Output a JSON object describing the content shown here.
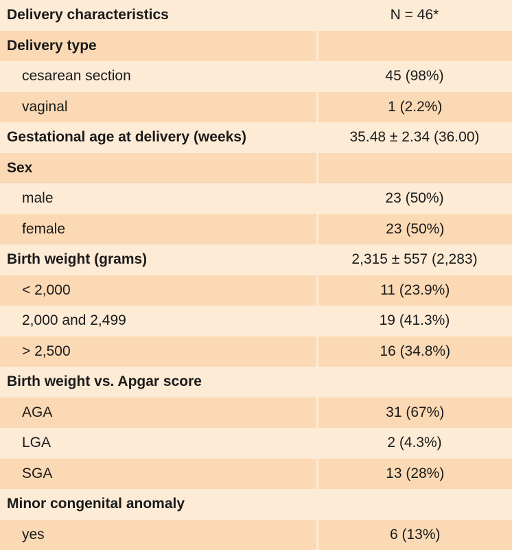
{
  "table": {
    "header": {
      "label": "Delivery characteristics",
      "value": "N = 46*"
    },
    "rows": [
      {
        "label": "Delivery type",
        "value": "",
        "kind": "head"
      },
      {
        "label": "cesarean section",
        "value": "45 (98%)",
        "kind": "sub"
      },
      {
        "label": "vaginal",
        "value": "1 (2.2%)",
        "kind": "sub"
      },
      {
        "label": "Gestational age at delivery (weeks)",
        "value": "35.48 ± 2.34 (36.00)",
        "kind": "head"
      },
      {
        "label": "Sex",
        "value": "",
        "kind": "head"
      },
      {
        "label": "male",
        "value": "23 (50%)",
        "kind": "sub"
      },
      {
        "label": "female",
        "value": "23 (50%)",
        "kind": "sub"
      },
      {
        "label": "Birth weight (grams)",
        "value": "2,315 ± 557 (2,283)",
        "kind": "head"
      },
      {
        "label": "< 2,000",
        "value": "11 (23.9%)",
        "kind": "sub"
      },
      {
        "label": "2,000 and 2,499",
        "value": "19 (41.3%)",
        "kind": "sub"
      },
      {
        "label": "> 2,500",
        "value": "16 (34.8%)",
        "kind": "sub"
      },
      {
        "label": "Birth weight vs. Apgar score",
        "value": "",
        "kind": "head"
      },
      {
        "label": "AGA",
        "value": "31 (67%)",
        "kind": "sub"
      },
      {
        "label": "LGA",
        "value": "2 (4.3%)",
        "kind": "sub"
      },
      {
        "label": "SGA",
        "value": "13 (28%)",
        "kind": "sub"
      },
      {
        "label": "Minor congenital  anomaly",
        "value": "",
        "kind": "head"
      },
      {
        "label": "yes",
        "value": "6 (13%)",
        "kind": "sub"
      }
    ]
  },
  "colors": {
    "light": "#fdebd6",
    "dark": "#fbd9b4",
    "text": "#1a1a1a"
  }
}
